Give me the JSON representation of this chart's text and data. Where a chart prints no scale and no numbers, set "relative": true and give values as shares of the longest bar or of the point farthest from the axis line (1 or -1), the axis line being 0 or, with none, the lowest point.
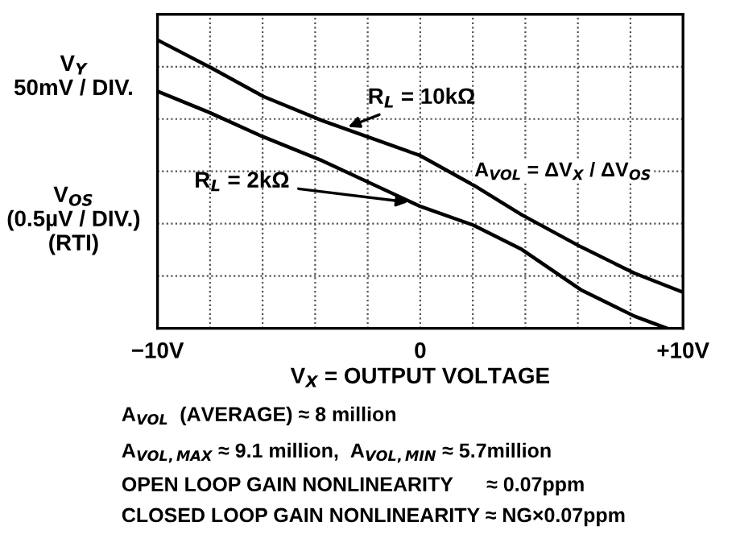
{
  "chart_data": {
    "type": "line",
    "relative": true,
    "xlabel": "V$_{X}$ = OUTPUT VOLTAGE",
    "ylabel": "V$_{Y}$\n50mV / DIV.",
    "xlim": [
      -10,
      10
    ],
    "xticks": [
      {
        "value": -10,
        "label": "−10V"
      },
      {
        "value": -8,
        "label": null
      },
      {
        "value": -6,
        "label": null
      },
      {
        "value": -4,
        "label": null
      },
      {
        "value": -2,
        "label": null
      },
      0,
      {
        "value": 2,
        "label": null
      },
      {
        "value": 4,
        "label": null
      },
      {
        "value": 6,
        "label": null
      },
      {
        "value": 8,
        "label": null
      },
      {
        "value": 10,
        "label": "+10V"
      }
    ],
    "grid": true,
    "line_style": "solid",
    "marker": "none",
    "series": [
      {
        "name": "R$_{L}$ = 10kΩ",
        "color": "#000000",
        "x": [
          -10,
          -8.01,
          -5.97,
          -3.72,
          0,
          2.02,
          3.86,
          6.11,
          8.16,
          10
        ],
        "values": [
          1,
          0.906,
          0.804,
          0.72,
          0.599,
          0.497,
          0.394,
          0.283,
          0.191,
          0.125
        ]
      },
      {
        "name": "R$_{L}$ = 2kΩ",
        "color": "#000000",
        "x": [
          -10,
          -8.01,
          -5.97,
          -3.72,
          0,
          2.02,
          3.86,
          6.11,
          8.16,
          9.39
        ],
        "values": [
          0.822,
          0.748,
          0.664,
          0.581,
          0.423,
          0.358,
          0.274,
          0.134,
          0.042,
          0
        ]
      }
    ],
    "annotations": [
      "V$_{OS}$\n(0.5µV / DIV.)\n(RTI)",
      "A$_{VOL}$ = ΔV$_{X}$ / ΔV$_{OS}$",
      "A$_{VOL}$  (AVERAGE) ≈ 8 million",
      "A$_{VOL,MAX}$ ≈ 9.1 million,  A$_{VOL,MIN}$ ≈ 5.7million",
      "OPEN LOOP GAIN NONLINEARITY      ≈ 0.07ppm",
      "CLOSED LOOP GAIN NONLINEARITY ≈ NG×0.07ppm"
    ]
  }
}
